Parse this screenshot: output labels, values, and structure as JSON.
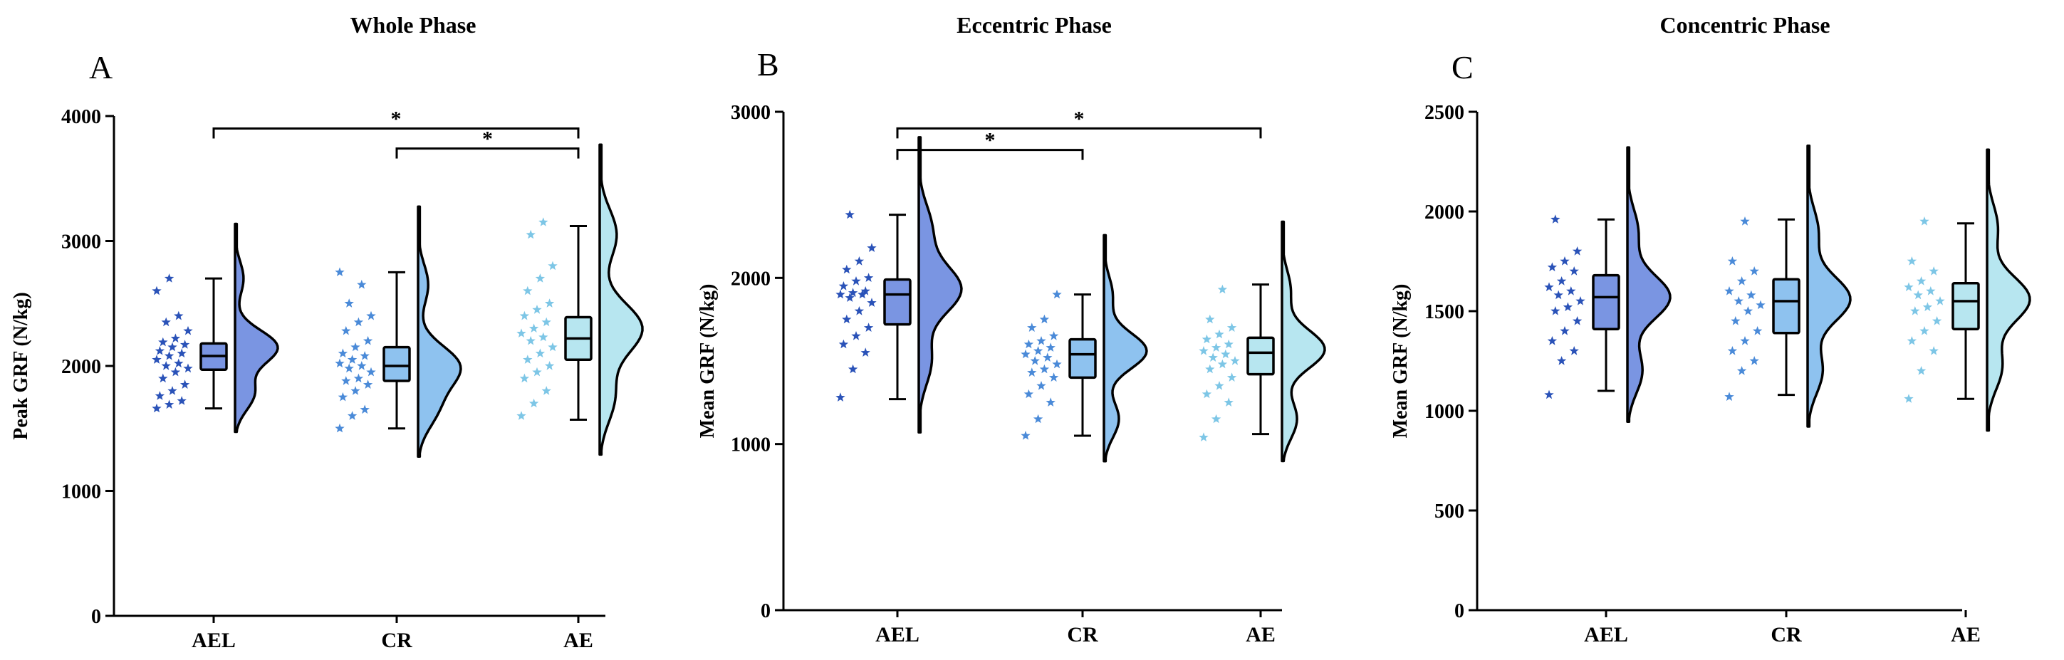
{
  "colors": {
    "AEL": "#7a95e2",
    "CR": "#8ec2ef",
    "AE": "#b7e6f0",
    "AEL_star": "#2a52b8",
    "CR_star": "#4a8ad8",
    "AE_star": "#7dc6e6",
    "axis": "#000000"
  },
  "icons": {
    "points": "star",
    "significance": "dot"
  },
  "chart_data": [
    {
      "type": "raincloud",
      "panel": "A",
      "title": "Whole Phase",
      "ylabel": "Peak GRF (N/kg)",
      "xlabel": "",
      "ylim": [
        0,
        4000
      ],
      "yticks": [
        0,
        1000,
        2000,
        3000,
        4000
      ],
      "categories": [
        "AEL",
        "CR",
        "AE"
      ],
      "series": [
        {
          "name": "AEL",
          "box": {
            "min": 1660,
            "q1": 1970,
            "median": 2080,
            "q3": 2180,
            "max": 2700
          },
          "points": [
            1660,
            1690,
            1720,
            1760,
            1800,
            1850,
            1900,
            1950,
            1980,
            2000,
            2020,
            2050,
            2080,
            2100,
            2120,
            2150,
            2170,
            2190,
            2220,
            2280,
            2350,
            2400,
            2600,
            2700
          ],
          "density_peaks": [
            [
              2150,
              1.0
            ],
            [
              1780,
              0.45
            ],
            [
              2700,
              0.2
            ]
          ]
        },
        {
          "name": "CR",
          "box": {
            "min": 1500,
            "q1": 1880,
            "median": 2000,
            "q3": 2150,
            "max": 2750
          },
          "points": [
            1500,
            1600,
            1650,
            1750,
            1800,
            1850,
            1880,
            1900,
            1950,
            1980,
            2000,
            2020,
            2050,
            2080,
            2100,
            2150,
            2200,
            2280,
            2350,
            2400,
            2500,
            2650,
            2750
          ],
          "density_peaks": [
            [
              2000,
              1.0
            ],
            [
              1660,
              0.45
            ],
            [
              2650,
              0.25
            ]
          ]
        },
        {
          "name": "AE",
          "box": {
            "min": 1570,
            "q1": 2050,
            "median": 2220,
            "q3": 2390,
            "max": 3120
          },
          "points": [
            1600,
            1700,
            1800,
            1900,
            1950,
            2000,
            2050,
            2100,
            2150,
            2200,
            2230,
            2260,
            2300,
            2350,
            2400,
            2450,
            2500,
            2600,
            2700,
            2800,
            3050,
            3150
          ],
          "density_peaks": [
            [
              2300,
              1.0
            ],
            [
              1750,
              0.35
            ],
            [
              3050,
              0.4
            ]
          ]
        }
      ],
      "significance": [
        {
          "from": "AEL",
          "to": "AE",
          "label": "*"
        },
        {
          "from": "CR",
          "to": "AE",
          "label": "*"
        }
      ]
    },
    {
      "type": "raincloud",
      "panel": "B",
      "title": "Eccentric Phase",
      "ylabel": "Mean GRF (N/kg)",
      "xlabel": "",
      "ylim": [
        0,
        3000
      ],
      "yticks": [
        0,
        1000,
        2000,
        3000
      ],
      "categories": [
        "AEL",
        "CR",
        "AE"
      ],
      "series": [
        {
          "name": "AEL",
          "box": {
            "min": 1270,
            "q1": 1720,
            "median": 1900,
            "q3": 1990,
            "max": 2380
          },
          "points": [
            1280,
            1450,
            1550,
            1600,
            1650,
            1700,
            1750,
            1800,
            1850,
            1880,
            1900,
            1900,
            1910,
            1920,
            1950,
            1980,
            2000,
            2050,
            2100,
            2180,
            2380
          ],
          "density_peaks": [
            [
              1930,
              1.0
            ],
            [
              1500,
              0.3
            ],
            [
              2300,
              0.3
            ]
          ]
        },
        {
          "name": "CR",
          "box": {
            "min": 1050,
            "q1": 1400,
            "median": 1540,
            "q3": 1630,
            "max": 1900
          },
          "points": [
            1050,
            1150,
            1250,
            1300,
            1350,
            1400,
            1430,
            1450,
            1480,
            1500,
            1520,
            1540,
            1560,
            1580,
            1600,
            1620,
            1650,
            1700,
            1750,
            1900
          ],
          "density_peaks": [
            [
              1560,
              1.0
            ],
            [
              1150,
              0.35
            ],
            [
              1900,
              0.2
            ]
          ]
        },
        {
          "name": "AE",
          "box": {
            "min": 1060,
            "q1": 1420,
            "median": 1550,
            "q3": 1640,
            "max": 1960
          },
          "points": [
            1040,
            1150,
            1250,
            1300,
            1350,
            1400,
            1450,
            1480,
            1500,
            1520,
            1540,
            1560,
            1580,
            1600,
            1630,
            1660,
            1700,
            1750,
            1930
          ],
          "density_peaks": [
            [
              1570,
              1.0
            ],
            [
              1150,
              0.35
            ],
            [
              1930,
              0.2
            ]
          ]
        }
      ],
      "significance": [
        {
          "from": "AEL",
          "to": "CR",
          "label": "*"
        },
        {
          "from": "AEL",
          "to": "AE",
          "label": "*"
        }
      ]
    },
    {
      "type": "raincloud",
      "panel": "C",
      "title": "Concentric Phase",
      "ylabel": "Mean GRF (N/kg)",
      "xlabel": "",
      "ylim": [
        0,
        2500
      ],
      "yticks": [
        0,
        500,
        1000,
        1500,
        2000,
        2500
      ],
      "categories": [
        "AEL",
        "CR",
        "AE"
      ],
      "series": [
        {
          "name": "AEL",
          "box": {
            "min": 1100,
            "q1": 1410,
            "median": 1570,
            "q3": 1680,
            "max": 1960
          },
          "points": [
            1080,
            1250,
            1300,
            1350,
            1400,
            1450,
            1500,
            1520,
            1550,
            1580,
            1600,
            1620,
            1650,
            1700,
            1720,
            1750,
            1800,
            1960
          ],
          "density_peaks": [
            [
              1570,
              1.0
            ],
            [
              1200,
              0.35
            ],
            [
              1900,
              0.25
            ]
          ]
        },
        {
          "name": "CR",
          "box": {
            "min": 1080,
            "q1": 1390,
            "median": 1550,
            "q3": 1660,
            "max": 1960
          },
          "points": [
            1070,
            1200,
            1250,
            1300,
            1350,
            1400,
            1450,
            1500,
            1530,
            1550,
            1580,
            1600,
            1650,
            1700,
            1750,
            1950
          ],
          "density_peaks": [
            [
              1560,
              1.0
            ],
            [
              1200,
              0.35
            ],
            [
              1900,
              0.25
            ]
          ]
        },
        {
          "name": "AE",
          "box": {
            "min": 1060,
            "q1": 1410,
            "median": 1550,
            "q3": 1640,
            "max": 1940
          },
          "points": [
            1060,
            1200,
            1300,
            1350,
            1400,
            1450,
            1500,
            1520,
            1550,
            1580,
            1600,
            1620,
            1650,
            1700,
            1750,
            1950
          ],
          "density_peaks": [
            [
              1560,
              1.0
            ],
            [
              1220,
              0.35
            ],
            [
              1920,
              0.25
            ]
          ]
        }
      ],
      "significance": []
    }
  ]
}
